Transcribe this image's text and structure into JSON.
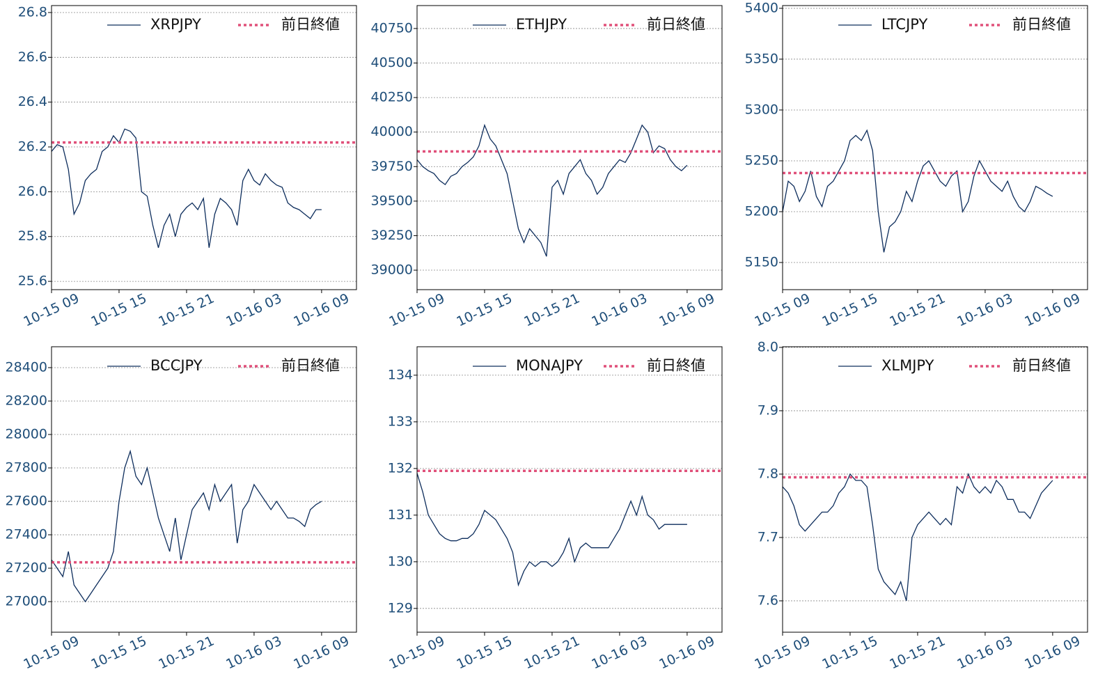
{
  "chart_data": [
    {
      "type": "line",
      "legend": "upper right",
      "grid": true,
      "x": [
        9,
        9.5,
        10,
        10.5,
        11,
        11.5,
        12,
        12.5,
        13,
        13.5,
        14,
        14.5,
        15,
        15.5,
        16,
        16.5,
        17,
        17.5,
        18,
        18.5,
        19,
        19.5,
        20,
        20.5,
        21,
        21.5,
        22,
        22.5,
        23,
        23.5,
        24,
        24.5,
        25,
        25.5,
        26,
        26.5,
        27,
        27.5,
        28,
        28.5,
        29,
        29.5,
        30,
        30.5,
        31,
        31.5,
        32,
        32.5,
        33
      ],
      "xlim": [
        9,
        36.1
      ],
      "xticks": [
        {
          "value": 9,
          "label": "10-15 09"
        },
        {
          "value": 15,
          "label": "10-15 15"
        },
        {
          "value": 21,
          "label": "10-15 21"
        },
        {
          "value": 27,
          "label": "10-16 03"
        },
        {
          "value": 33,
          "label": "10-16 09"
        }
      ],
      "ylim": [
        25.563,
        26.831
      ],
      "yticks": [
        25.6,
        25.8,
        {
          "value": 26,
          "label": "26.0"
        },
        26.2,
        26.4,
        26.6,
        26.8
      ],
      "series": [
        {
          "name": "XRPJPY",
          "color": "#0d2d5c",
          "values": [
            26.18,
            26.21,
            26.2,
            26.1,
            25.9,
            25.95,
            26.05,
            26.08,
            26.1,
            26.18,
            26.2,
            26.25,
            26.22,
            26.28,
            26.27,
            26.24,
            26.0,
            25.98,
            25.85,
            25.75,
            25.85,
            25.9,
            25.8,
            25.9,
            25.93,
            25.95,
            25.92,
            25.97,
            25.75,
            25.9,
            25.97,
            25.95,
            25.92,
            25.85,
            26.05,
            26.1,
            26.05,
            26.03,
            26.08,
            26.05,
            26.03,
            26.02,
            25.95,
            25.93,
            25.92,
            25.9,
            25.88,
            25.92,
            25.92
          ]
        }
      ],
      "reference": {
        "name": "前日終値",
        "value": 26.22,
        "color": "#e0507a"
      }
    },
    {
      "type": "line",
      "legend": "upper right",
      "grid": true,
      "x": [
        9,
        9.5,
        10,
        10.5,
        11,
        11.5,
        12,
        12.5,
        13,
        13.5,
        14,
        14.5,
        15,
        15.5,
        16,
        16.5,
        17,
        17.5,
        18,
        18.5,
        19,
        19.5,
        20,
        20.5,
        21,
        21.5,
        22,
        22.5,
        23,
        23.5,
        24,
        24.5,
        25,
        25.5,
        26,
        26.5,
        27,
        27.5,
        28,
        28.5,
        29,
        29.5,
        30,
        30.5,
        31,
        31.5,
        32,
        32.5,
        33
      ],
      "xlim": [
        9,
        36.1
      ],
      "xticks": [
        {
          "value": 9,
          "label": "10-15 09"
        },
        {
          "value": 15,
          "label": "10-15 15"
        },
        {
          "value": 21,
          "label": "10-15 21"
        },
        {
          "value": 27,
          "label": "10-16 03"
        },
        {
          "value": 33,
          "label": "10-16 09"
        }
      ],
      "ylim": [
        38859,
        40916
      ],
      "yticks": [
        39000,
        39250,
        39500,
        39750,
        40000,
        40250,
        40500,
        40750
      ],
      "series": [
        {
          "name": "ETHJPY",
          "color": "#0d2d5c",
          "values": [
            39800,
            39750,
            39720,
            39700,
            39650,
            39620,
            39680,
            39700,
            39750,
            39780,
            39820,
            39900,
            40050,
            39950,
            39900,
            39800,
            39700,
            39500,
            39300,
            39200,
            39300,
            39250,
            39200,
            39100,
            39600,
            39650,
            39550,
            39700,
            39750,
            39800,
            39700,
            39650,
            39550,
            39600,
            39700,
            39750,
            39800,
            39780,
            39850,
            39950,
            40050,
            40000,
            39850,
            39900,
            39880,
            39800,
            39750,
            39720,
            39760
          ]
        }
      ],
      "reference": {
        "name": "前日終値",
        "value": 39860,
        "color": "#e0507a"
      }
    },
    {
      "type": "line",
      "legend": "upper right",
      "grid": true,
      "x": [
        9,
        9.5,
        10,
        10.5,
        11,
        11.5,
        12,
        12.5,
        13,
        13.5,
        14,
        14.5,
        15,
        15.5,
        16,
        16.5,
        17,
        17.5,
        18,
        18.5,
        19,
        19.5,
        20,
        20.5,
        21,
        21.5,
        22,
        22.5,
        23,
        23.5,
        24,
        24.5,
        25,
        25.5,
        26,
        26.5,
        27,
        27.5,
        28,
        28.5,
        29,
        29.5,
        30,
        30.5,
        31,
        31.5,
        32,
        32.5,
        33
      ],
      "xlim": [
        9,
        36.1
      ],
      "xticks": [
        {
          "value": 9,
          "label": "10-15 09"
        },
        {
          "value": 15,
          "label": "10-15 15"
        },
        {
          "value": 21,
          "label": "10-15 21"
        },
        {
          "value": 27,
          "label": "10-16 03"
        },
        {
          "value": 33,
          "label": "10-16 09"
        }
      ],
      "ylim": [
        5123.3,
        5402.7
      ],
      "yticks": [
        5150,
        5200,
        5250,
        5300,
        5350,
        5400
      ],
      "series": [
        {
          "name": "LTCJPY",
          "color": "#0d2d5c",
          "values": [
            5200,
            5230,
            5225,
            5210,
            5220,
            5240,
            5215,
            5205,
            5225,
            5230,
            5240,
            5250,
            5270,
            5275,
            5270,
            5280,
            5260,
            5200,
            5160,
            5185,
            5190,
            5200,
            5220,
            5210,
            5230,
            5245,
            5250,
            5240,
            5230,
            5225,
            5235,
            5240,
            5200,
            5210,
            5235,
            5250,
            5240,
            5230,
            5225,
            5220,
            5230,
            5215,
            5205,
            5200,
            5210,
            5225,
            5222,
            5218,
            5215
          ]
        }
      ],
      "reference": {
        "name": "前日終値",
        "value": 5238,
        "color": "#e0507a"
      }
    },
    {
      "type": "line",
      "legend": "upper right",
      "grid": true,
      "x": [
        9,
        9.5,
        10,
        10.5,
        11,
        11.5,
        12,
        12.5,
        13,
        13.5,
        14,
        14.5,
        15,
        15.5,
        16,
        16.5,
        17,
        17.5,
        18,
        18.5,
        19,
        19.5,
        20,
        20.5,
        21,
        21.5,
        22,
        22.5,
        23,
        23.5,
        24,
        24.5,
        25,
        25.5,
        26,
        26.5,
        27,
        27.5,
        28,
        28.5,
        29,
        29.5,
        30,
        30.5,
        31,
        31.5,
        32,
        32.5,
        33
      ],
      "xlim": [
        9,
        36.1
      ],
      "xticks": [
        {
          "value": 9,
          "label": "10-15 09"
        },
        {
          "value": 15,
          "label": "10-15 15"
        },
        {
          "value": 21,
          "label": "10-15 21"
        },
        {
          "value": 27,
          "label": "10-16 03"
        },
        {
          "value": 33,
          "label": "10-16 09"
        }
      ],
      "ylim": [
        26817,
        28525
      ],
      "yticks": [
        27000,
        27200,
        27400,
        27600,
        27800,
        28000,
        28200,
        28400
      ],
      "series": [
        {
          "name": "BCCJPY",
          "color": "#0d2d5c",
          "values": [
            27250,
            27200,
            27150,
            27300,
            27100,
            27050,
            27000,
            27050,
            27100,
            27150,
            27200,
            27300,
            27600,
            27800,
            27900,
            27750,
            27700,
            27800,
            27650,
            27500,
            27400,
            27300,
            27500,
            27250,
            27400,
            27550,
            27600,
            27650,
            27550,
            27700,
            27600,
            27650,
            27700,
            27350,
            27550,
            27600,
            27700,
            27650,
            27600,
            27550,
            27600,
            27550,
            27500,
            27500,
            27480,
            27450,
            27550,
            27580,
            27600
          ]
        }
      ],
      "reference": {
        "name": "前日終値",
        "value": 27235,
        "color": "#e0507a"
      }
    },
    {
      "type": "line",
      "legend": "upper right",
      "grid": true,
      "x": [
        9,
        9.5,
        10,
        10.5,
        11,
        11.5,
        12,
        12.5,
        13,
        13.5,
        14,
        14.5,
        15,
        15.5,
        16,
        16.5,
        17,
        17.5,
        18,
        18.5,
        19,
        19.5,
        20,
        20.5,
        21,
        21.5,
        22,
        22.5,
        23,
        23.5,
        24,
        24.5,
        25,
        25.5,
        26,
        26.5,
        27,
        27.5,
        28,
        28.5,
        29,
        29.5,
        30,
        30.5,
        31,
        31.5,
        32,
        32.5,
        33
      ],
      "xlim": [
        9,
        36.1
      ],
      "xticks": [
        {
          "value": 9,
          "label": "10-15 09"
        },
        {
          "value": 15,
          "label": "10-15 15"
        },
        {
          "value": 21,
          "label": "10-15 21"
        },
        {
          "value": 27,
          "label": "10-16 03"
        },
        {
          "value": 33,
          "label": "10-16 09"
        }
      ],
      "ylim": [
        128.49,
        134.61
      ],
      "yticks": [
        129,
        130,
        131,
        132,
        133,
        134
      ],
      "series": [
        {
          "name": "MONAJPY",
          "color": "#0d2d5c",
          "values": [
            131.9,
            131.5,
            131.0,
            130.8,
            130.6,
            130.5,
            130.45,
            130.45,
            130.5,
            130.5,
            130.6,
            130.8,
            131.1,
            131.0,
            130.9,
            130.7,
            130.5,
            130.2,
            129.5,
            129.8,
            130.0,
            129.9,
            130.0,
            130.0,
            129.9,
            130.0,
            130.2,
            130.5,
            130.0,
            130.3,
            130.4,
            130.3,
            130.3,
            130.3,
            130.3,
            130.5,
            130.7,
            131.0,
            131.3,
            131.0,
            131.4,
            131.0,
            130.9,
            130.7,
            130.8,
            130.8,
            130.8,
            130.8,
            130.8
          ]
        }
      ],
      "reference": {
        "name": "前日終値",
        "value": 131.95,
        "color": "#e0507a"
      }
    },
    {
      "type": "line",
      "legend": "upper right",
      "grid": true,
      "x": [
        9,
        9.5,
        10,
        10.5,
        11,
        11.5,
        12,
        12.5,
        13,
        13.5,
        14,
        14.5,
        15,
        15.5,
        16,
        16.5,
        17,
        17.5,
        18,
        18.5,
        19,
        19.5,
        20,
        20.5,
        21,
        21.5,
        22,
        22.5,
        23,
        23.5,
        24,
        24.5,
        25,
        25.5,
        26,
        26.5,
        27,
        27.5,
        28,
        28.5,
        29,
        29.5,
        30,
        30.5,
        31,
        31.5,
        32,
        32.5,
        33
      ],
      "xlim": [
        9,
        36.1
      ],
      "xticks": [
        {
          "value": 9,
          "label": "10-15 09"
        },
        {
          "value": 15,
          "label": "10-15 15"
        },
        {
          "value": 21,
          "label": "10-15 21"
        },
        {
          "value": 27,
          "label": "10-16 03"
        },
        {
          "value": 33,
          "label": "10-16 09"
        }
      ],
      "ylim": [
        7.5505,
        8.001
      ],
      "yticks": [
        7.6,
        7.7,
        7.8,
        7.9,
        {
          "value": 8,
          "label": "8.0"
        }
      ],
      "series": [
        {
          "name": "XLMJPY",
          "color": "#0d2d5c",
          "values": [
            7.78,
            7.77,
            7.75,
            7.72,
            7.71,
            7.72,
            7.73,
            7.74,
            7.74,
            7.75,
            7.77,
            7.78,
            7.8,
            7.79,
            7.79,
            7.78,
            7.72,
            7.65,
            7.63,
            7.62,
            7.61,
            7.63,
            7.6,
            7.7,
            7.72,
            7.73,
            7.74,
            7.73,
            7.72,
            7.73,
            7.72,
            7.78,
            7.77,
            7.8,
            7.78,
            7.77,
            7.78,
            7.77,
            7.79,
            7.78,
            7.76,
            7.76,
            7.74,
            7.74,
            7.73,
            7.75,
            7.77,
            7.78,
            7.79
          ]
        }
      ],
      "reference": {
        "name": "前日終値",
        "value": 7.795,
        "color": "#e0507a"
      }
    }
  ]
}
